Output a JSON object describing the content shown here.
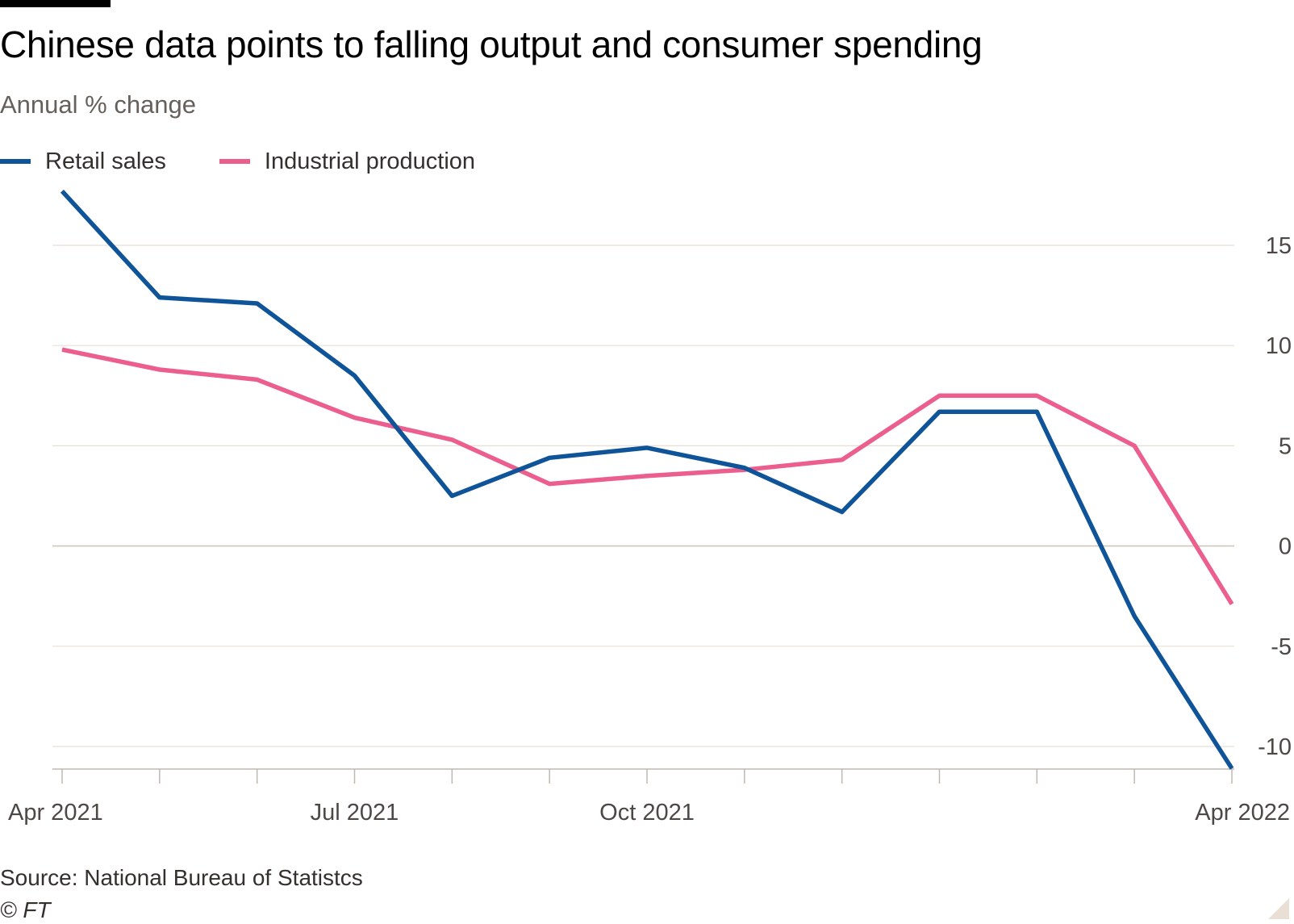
{
  "header": {
    "title": "Chinese data points to falling output and consumer spending",
    "subtitle": "Annual % change"
  },
  "footer": {
    "source": "Source: National Bureau of Statistcs",
    "credit": "© FT"
  },
  "colors": {
    "retail": "#0f5499",
    "industrial": "#eb5e8d",
    "grid": "#e6dfd6",
    "axis": "#bfb8b0"
  },
  "chart_data": {
    "type": "line",
    "title": "Chinese data points to falling output and consumer spending",
    "subtitle": "Annual % change",
    "x": [
      "2021-04",
      "2021-05",
      "2021-06",
      "2021-07",
      "2021-08",
      "2021-09",
      "2021-10",
      "2021-11",
      "2021-12",
      "2022-01",
      "2022-02",
      "2022-03",
      "2022-04"
    ],
    "x_tick_labels": [
      {
        "index": 0,
        "label": "Apr 2021"
      },
      {
        "index": 3,
        "label": "Jul 2021"
      },
      {
        "index": 6,
        "label": "Oct 2021"
      },
      {
        "index": 12,
        "label": "Apr 2022"
      }
    ],
    "series": [
      {
        "name": "Retail sales",
        "values": [
          17.7,
          12.4,
          12.1,
          8.5,
          2.5,
          4.4,
          4.9,
          3.9,
          1.7,
          6.7,
          6.7,
          -3.5,
          -11.1
        ]
      },
      {
        "name": "Industrial production",
        "values": [
          9.8,
          8.8,
          8.3,
          6.4,
          5.3,
          3.1,
          3.5,
          3.8,
          4.3,
          7.5,
          7.5,
          5.0,
          -2.9
        ]
      }
    ],
    "y_ticks": [
      15,
      10,
      5,
      0,
      -5,
      -10
    ],
    "ylim": [
      -11.2,
      18
    ],
    "grid": true,
    "y_axis_position": "right",
    "legend_position": "top-left"
  }
}
